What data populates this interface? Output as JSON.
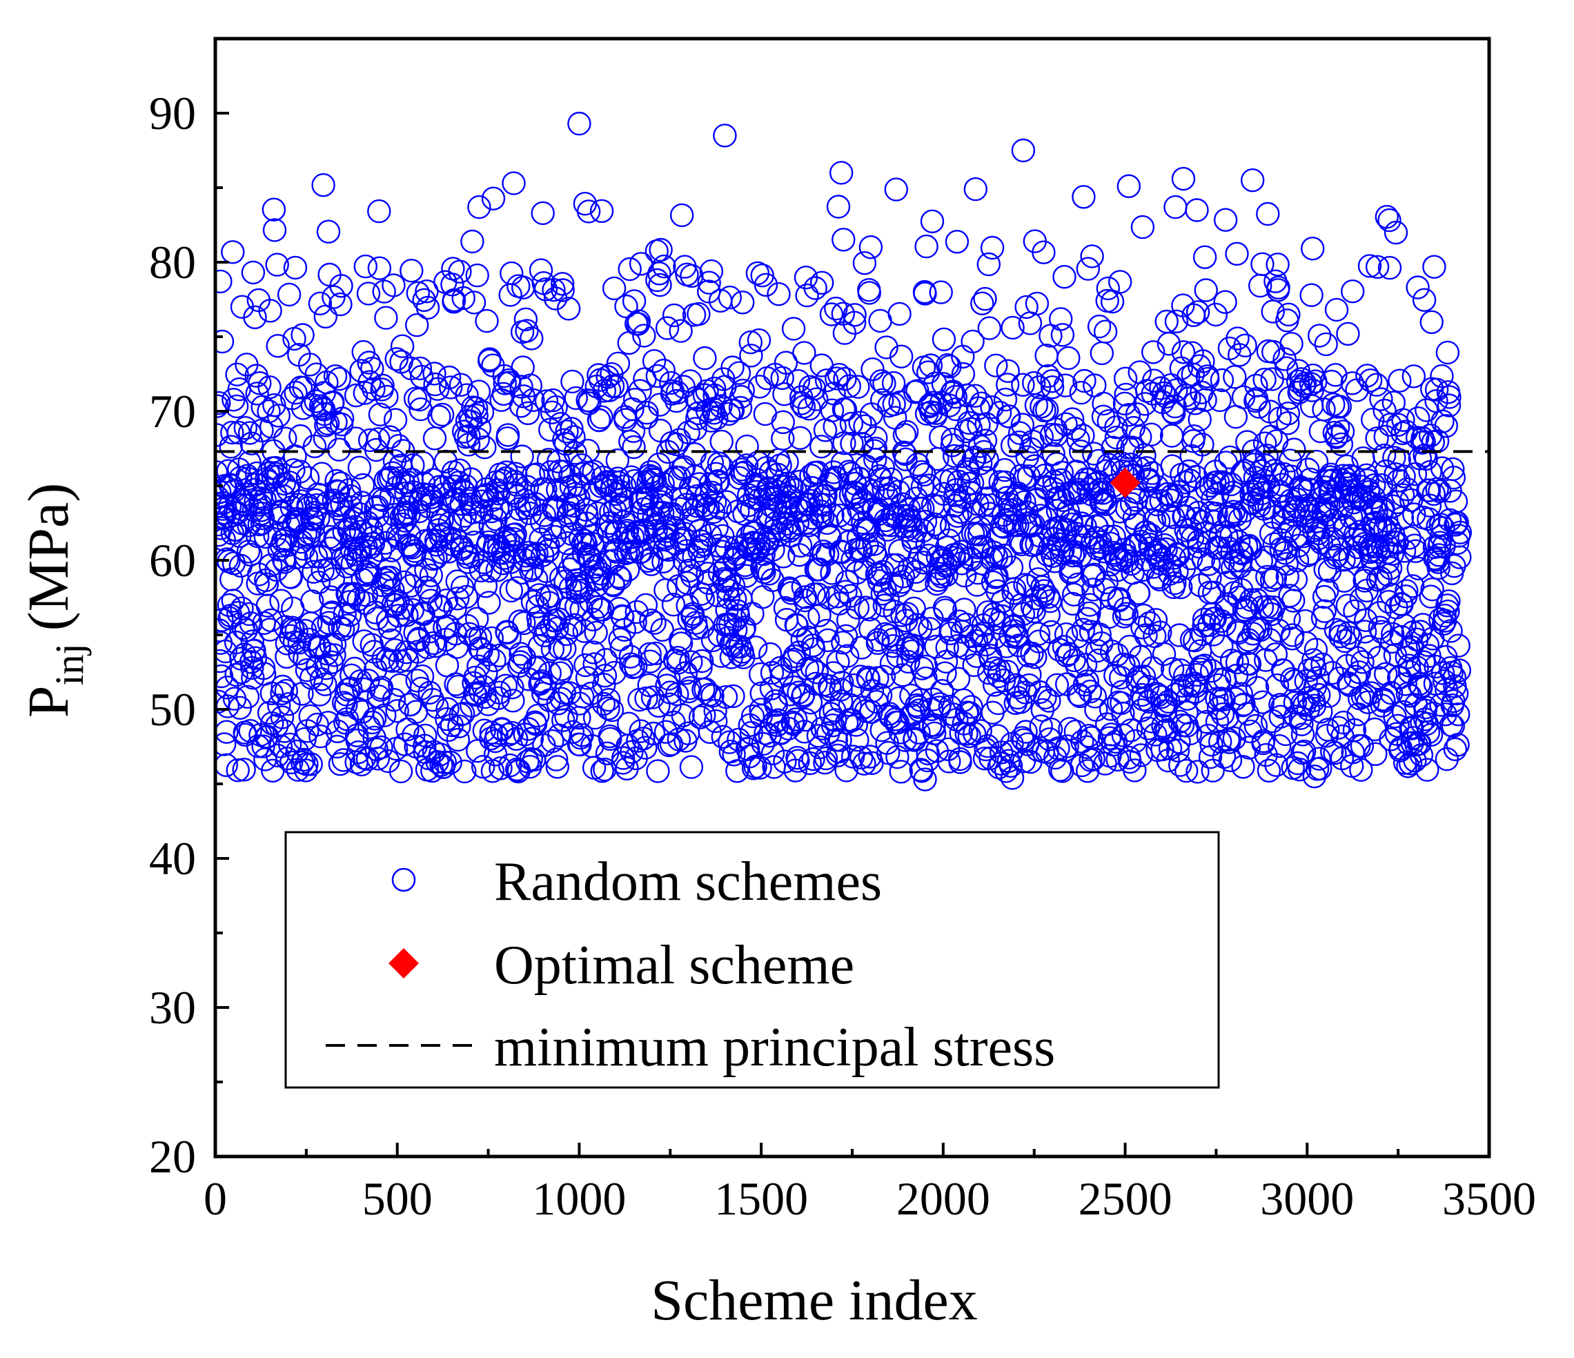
{
  "chart_data": {
    "type": "scatter",
    "title": "",
    "xlabel": "Scheme index",
    "ylabel": "P",
    "ylabel_subscript": "inj",
    "ylabel_unit": "(MPa)",
    "xlim": [
      0,
      3500
    ],
    "ylim": [
      20,
      95
    ],
    "xticks": [
      0,
      500,
      1000,
      1500,
      2000,
      2500,
      3000,
      3500
    ],
    "yticks": [
      20,
      30,
      40,
      50,
      60,
      70,
      80,
      90
    ],
    "xtick_labels": [
      "0",
      "500",
      "1000",
      "1500",
      "2000",
      "2500",
      "3000",
      "3500"
    ],
    "ytick_labels": [
      "20",
      "30",
      "40",
      "50",
      "60",
      "70",
      "80",
      "90"
    ],
    "grid": false,
    "legend_position": "bottom-center",
    "series": [
      {
        "name": "Random schemes",
        "marker": "open-circle",
        "color": "#0000ff",
        "n_points": 3420,
        "x_range": [
          1,
          3420
        ],
        "y_range": [
          45.3,
          89.3
        ],
        "notable_points": [
          {
            "x": 1000,
            "y": 89.3
          },
          {
            "x": 1400,
            "y": 88.5
          },
          {
            "x": 2220,
            "y": 87.5
          },
          {
            "x": 1720,
            "y": 86.0
          },
          {
            "x": 2850,
            "y": 85.5
          },
          {
            "x": 820,
            "y": 85.3
          },
          {
            "x": 2660,
            "y": 85.6
          },
          {
            "x": 2510,
            "y": 85.1
          },
          {
            "x": 3020,
            "y": 45.5
          },
          {
            "x": 1950,
            "y": 45.3
          },
          {
            "x": 2190,
            "y": 45.4
          }
        ]
      },
      {
        "name": "Optimal scheme",
        "marker": "filled-diamond",
        "color": "#ff0000",
        "points": [
          {
            "x": 2500,
            "y": 65.2
          }
        ]
      },
      {
        "name": "minimum principal stress",
        "style": "dashed-line",
        "color": "#000000",
        "y": 67.3
      }
    ]
  }
}
